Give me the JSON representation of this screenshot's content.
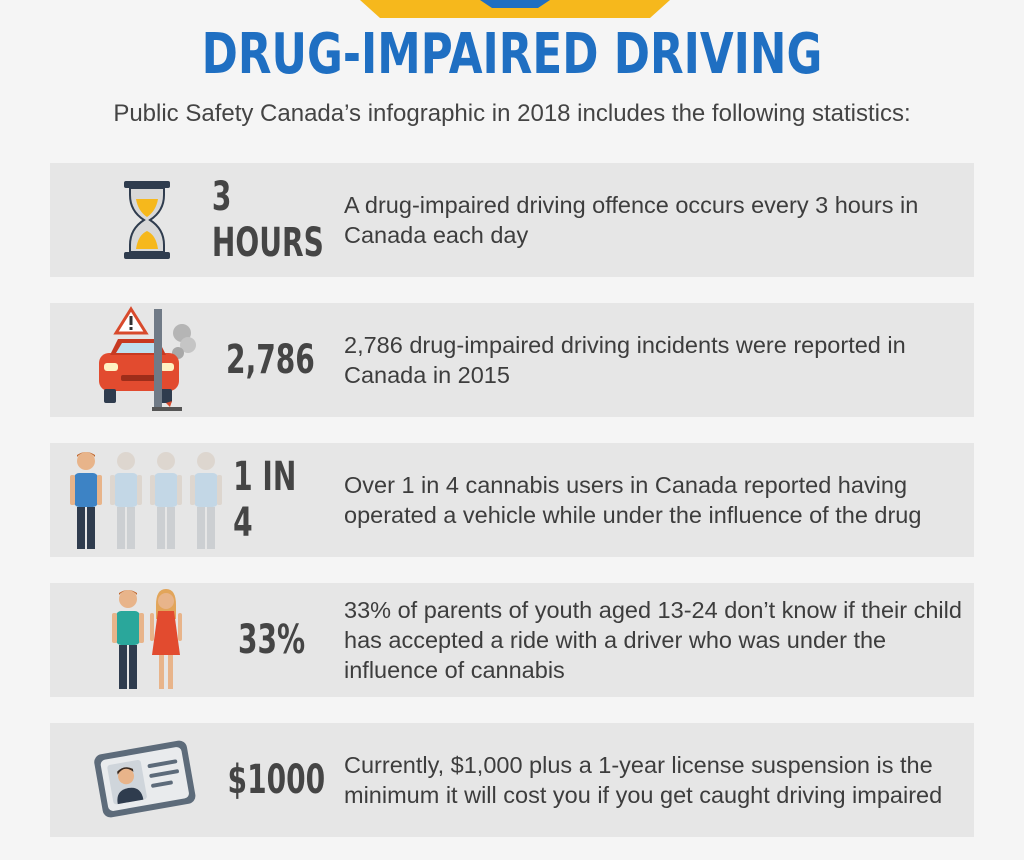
{
  "header": {
    "title": "DRUG-IMPAIRED DRIVING",
    "subtitle": "Public Safety Canada’s infographic in 2018 includes the following statistics:"
  },
  "colors": {
    "title_blue": "#1f6fc2",
    "banner_yellow": "#f6b81c",
    "row_background": "#e6e6e6",
    "stat_text": "#454545"
  },
  "stats": [
    {
      "icon": "hourglass-icon",
      "value": "3 HOURS",
      "description": "A drug-impaired driving offence occurs every 3 hours in Canada each day"
    },
    {
      "icon": "car-crash-icon",
      "value": "2,786",
      "description": "2,786 drug-impaired driving incidents were reported in Canada in 2015"
    },
    {
      "icon": "people-group-icon",
      "value": "1 IN 4",
      "description": "Over 1 in 4 cannabis users in Canada reported having operated a vehicle while under the influence of the drug"
    },
    {
      "icon": "parents-icon",
      "value": "33%",
      "description": "33% of parents of youth aged 13-24 don’t know if their child has accepted a ride with a driver who was under the influence of cannabis"
    },
    {
      "icon": "license-card-icon",
      "value": "$1000",
      "description": "Currently, $1,000 plus a 1-year license suspension is the minimum it will cost you if you get caught driving impaired"
    }
  ]
}
